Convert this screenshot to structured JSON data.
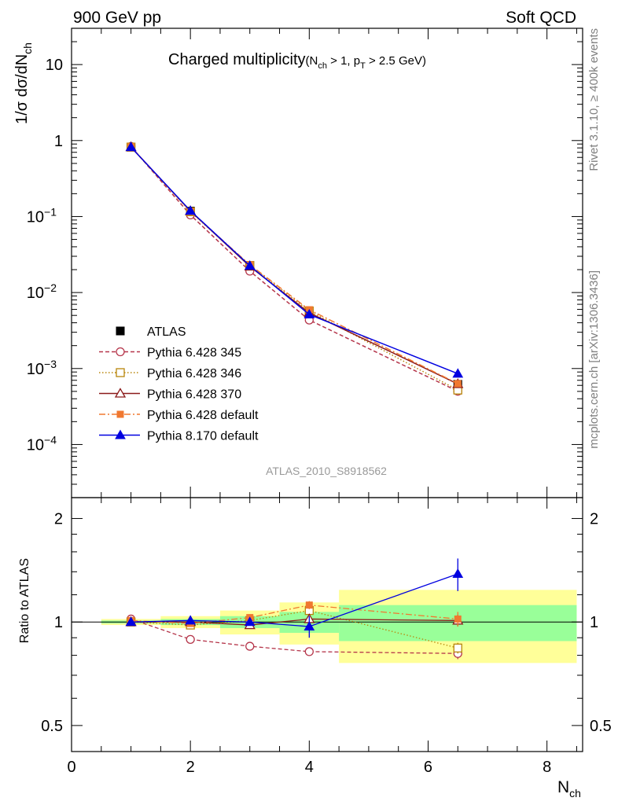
{
  "header": {
    "left": "900 GeV pp",
    "right": "Soft QCD"
  },
  "plot_title": {
    "main": "Charged multiplicity",
    "cond_open": "(N",
    "cond_sub1": "ch",
    "cond_mid": " > 1, p",
    "cond_sub2": "T",
    "cond_end": " > 2.5 GeV)"
  },
  "side_text": {
    "rivet": "Rivet 3.1.10, ≥ 400k events",
    "mcplots": "mcplots.cern.ch [arXiv:1306.3436]"
  },
  "analysis_label": "ATLAS_2010_S8918562",
  "ylabel_main": {
    "base": "1/σ dσ/dN",
    "sub": "ch"
  },
  "ylabel_ratio": "Ratio to ATLAS",
  "xlabel": {
    "base": "N",
    "sub": "ch"
  },
  "main_ticks": [
    {
      "value": 10,
      "label": "10",
      "sup": ""
    },
    {
      "value": 1,
      "label": "1",
      "sup": ""
    },
    {
      "value": 0.1,
      "label": "10",
      "sup": "−1"
    },
    {
      "value": 0.01,
      "label": "10",
      "sup": "−2"
    },
    {
      "value": 0.001,
      "label": "10",
      "sup": "−3"
    },
    {
      "value": 0.0001,
      "label": "10",
      "sup": "−4"
    }
  ],
  "ratio_ticks": [
    {
      "value": 2,
      "label": "2"
    },
    {
      "value": 1,
      "label": "1"
    },
    {
      "value": 0.5,
      "label": "0.5"
    }
  ],
  "x_ticks": [
    {
      "value": 0,
      "label": "0"
    },
    {
      "value": 2,
      "label": "2"
    },
    {
      "value": 4,
      "label": "4"
    },
    {
      "value": 6,
      "label": "6"
    },
    {
      "value": 8,
      "label": "8"
    }
  ],
  "chart_data": {
    "type": "line",
    "title": "Charged multiplicity (Nch > 1, pT > 2.5 GeV)",
    "xlabel": "Nch",
    "ylabel": "1/σ dσ/dNch",
    "xlim": [
      0,
      8.6
    ],
    "ylim_log": [
      2e-05,
      30
    ],
    "ratio_ylim": [
      0.42,
      2.3
    ],
    "x": [
      1,
      2,
      3,
      4,
      6.5
    ],
    "bins": [
      [
        0.5,
        1.5
      ],
      [
        1.5,
        2.5
      ],
      [
        2.5,
        3.5
      ],
      [
        3.5,
        4.5
      ],
      [
        4.5,
        8.5
      ]
    ],
    "data": {
      "name": "ATLAS",
      "values": [
        0.82,
        0.118,
        0.0225,
        0.0053,
        0.00062
      ],
      "stat_rel": [
        0.01,
        0.02,
        0.04,
        0.07,
        0.12
      ],
      "total_rel": [
        0.02,
        0.04,
        0.08,
        0.14,
        0.24
      ]
    },
    "series": [
      {
        "name": "Pythia 6.428 345",
        "color": "#b5354a",
        "dash": "5,3",
        "marker": "circle-open",
        "ratio": [
          1.02,
          0.89,
          0.85,
          0.82,
          0.81
        ],
        "ratio_err": [
          0.01,
          0.01,
          0.01,
          0.02,
          0.03
        ]
      },
      {
        "name": "Pythia 6.428 346",
        "color": "#b8860b",
        "dash": "1.5,2.5",
        "marker": "square-open",
        "ratio": [
          1.0,
          0.98,
          1.01,
          1.08,
          0.84
        ],
        "ratio_err": [
          0.01,
          0.01,
          0.02,
          0.03,
          0.03
        ]
      },
      {
        "name": "Pythia 6.428 370",
        "color": "#8b1a1a",
        "dash": "",
        "marker": "triangle-open",
        "ratio": [
          1.0,
          1.0,
          0.98,
          1.02,
          1.01
        ],
        "ratio_err": [
          0.01,
          0.01,
          0.02,
          0.03,
          0.04
        ]
      },
      {
        "name": "Pythia 6.428 default",
        "color": "#f07830",
        "dash": "8,3,2,3",
        "marker": "square-filled",
        "ratio": [
          1.01,
          0.99,
          1.03,
          1.12,
          1.02
        ],
        "ratio_err": [
          0.01,
          0.01,
          0.02,
          0.03,
          0.05
        ]
      },
      {
        "name": "Pythia 8.170 default",
        "color": "#0000e0",
        "dash": "",
        "marker": "triangle-filled",
        "ratio": [
          1.0,
          1.01,
          1.0,
          0.97,
          1.38
        ],
        "ratio_err": [
          0.01,
          0.01,
          0.02,
          0.07,
          0.15
        ]
      }
    ]
  }
}
